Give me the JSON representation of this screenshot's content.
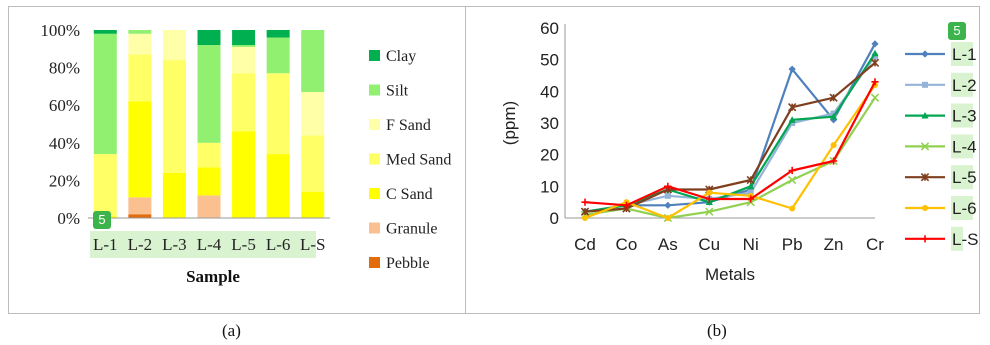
{
  "chart_data": [
    {
      "type": "bar",
      "stacked": true,
      "categories": [
        "L-1",
        "L-2",
        "L-3",
        "L-4",
        "L-5",
        "L-6",
        "L-S"
      ],
      "xlabel": "Sample",
      "ylim": [
        0,
        100
      ],
      "yticks": [
        "0%",
        "20%",
        "40%",
        "60%",
        "80%",
        "100%"
      ],
      "legend_position": "right",
      "series": [
        {
          "name": "Pebble",
          "color": "#e36c0a",
          "values": [
            0,
            2,
            0,
            0,
            0,
            0,
            0
          ]
        },
        {
          "name": "Granule",
          "color": "#fac090",
          "values": [
            0,
            9,
            0,
            12,
            0,
            0,
            0
          ]
        },
        {
          "name": "C Sand",
          "color": "#ffff00",
          "values": [
            1,
            51,
            24,
            15,
            46,
            34,
            14
          ]
        },
        {
          "name": "Med Sand",
          "color": "#ffff66",
          "values": [
            33,
            25,
            60,
            13,
            31,
            43,
            30
          ]
        },
        {
          "name": "F Sand",
          "color": "#ffffa8",
          "values": [
            0,
            11,
            16,
            0,
            14,
            0,
            23
          ]
        },
        {
          "name": "Silt",
          "color": "#92f070",
          "values": [
            64,
            2,
            0,
            52,
            1,
            19,
            33
          ]
        },
        {
          "name": "Clay",
          "color": "#00b050",
          "values": [
            2,
            0,
            0,
            8,
            8,
            4,
            0
          ]
        }
      ]
    },
    {
      "type": "line",
      "categories": [
        "Cd",
        "Co",
        "As",
        "Cu",
        "Ni",
        "Pb",
        "Zn",
        "Cr"
      ],
      "xlabel": "Metals",
      "ylabel": "(ppm)",
      "ylim": [
        0,
        60
      ],
      "yticks": [
        "0",
        "10",
        "20",
        "30",
        "40",
        "50",
        "60"
      ],
      "legend_position": "right",
      "series": [
        {
          "name": "L-1",
          "color": "#4f81bd",
          "marker": "diamond",
          "values": [
            2,
            4,
            4,
            5,
            9,
            47,
            31,
            55
          ]
        },
        {
          "name": "L-2",
          "color": "#95b3d7",
          "marker": "square",
          "values": [
            2,
            4,
            7,
            6,
            8,
            30,
            33,
            51
          ]
        },
        {
          "name": "L-3",
          "color": "#00a651",
          "marker": "triangle",
          "values": [
            2,
            4,
            9,
            5,
            10,
            31,
            32,
            52
          ]
        },
        {
          "name": "L-4",
          "color": "#92d050",
          "marker": "x",
          "values": [
            1,
            3,
            0,
            2,
            5,
            12,
            18,
            38
          ]
        },
        {
          "name": "L-5",
          "color": "#7f3f1f",
          "marker": "star",
          "values": [
            2,
            3,
            9,
            9,
            12,
            35,
            38,
            49
          ]
        },
        {
          "name": "L-6",
          "color": "#ffc000",
          "marker": "circle",
          "values": [
            0,
            5,
            0,
            8,
            7,
            3,
            23,
            42
          ]
        },
        {
          "name": "L-S",
          "color": "#ff0000",
          "marker": "plus",
          "values": [
            5,
            4,
            10,
            6,
            6,
            15,
            18,
            43
          ]
        }
      ]
    }
  ],
  "captions": {
    "a": "(a)",
    "b": "(b)"
  },
  "badges": {
    "left": "5",
    "right": "5"
  }
}
